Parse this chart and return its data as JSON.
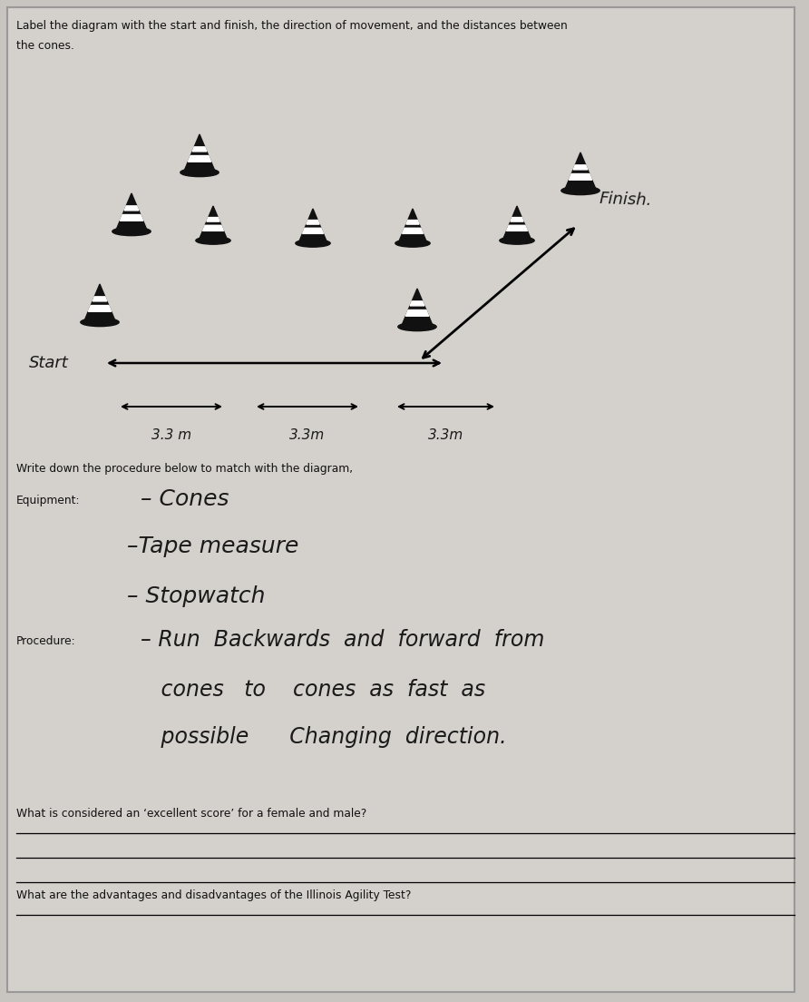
{
  "bg_color": "#c8c4c0",
  "page_color": "#d8d4d0",
  "title_line1": "Label the diagram with the start and finish, the direction of movement, and the distances between",
  "title_line2": "the cones.",
  "title_fontsize": 9.0,
  "finish_label": "Finish.",
  "start_label": "Start",
  "distance_labels": [
    "3.3 m",
    "3.3m",
    "3.3m"
  ],
  "procedure_header": "Write down the procedure below to match with the diagram,",
  "equipment_header": "Equipment:",
  "equipment_items": [
    "- Cones",
    "-Tape measure",
    "- Stopwatch"
  ],
  "procedure_header2": "Procedure:",
  "proc_line1": "- Run  Backwards  and  forward  from",
  "proc_line2": "  cones   to    cones  as  fast  as",
  "proc_line3": "  possible      Changing  direction.",
  "question1": "What is considered an ‘excellent score’ for a female and male?",
  "question2": "What are the advantages and disadvantages of the Illinois Agility Test?",
  "handwriting_color": "#1a1a1a",
  "print_color": "#111111",
  "cone_color": "#111111",
  "cone_stripe_color": "#ffffff"
}
